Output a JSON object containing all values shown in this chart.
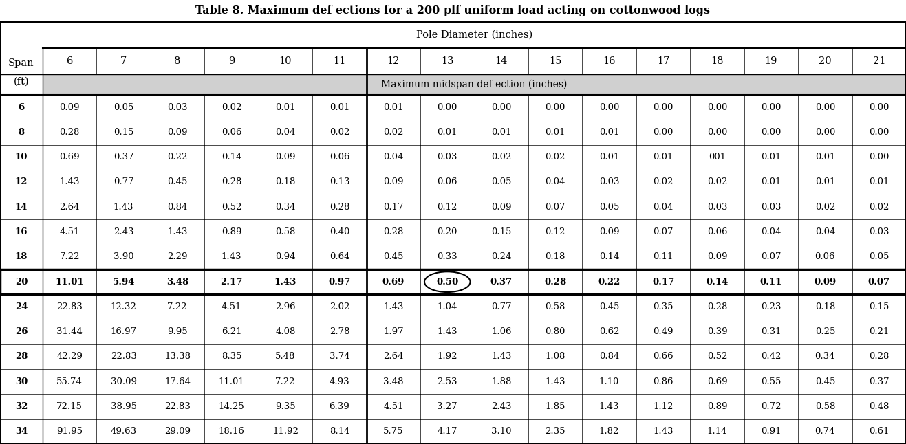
{
  "title": "Table 8. Maximum def ections for a 200 plf uniform load acting on cottonwood logs",
  "pole_diameter_label": "Pole Diameter (inches)",
  "midspan_label": "Maximum midspan def ection (inches)",
  "col_headers": [
    "6",
    "7",
    "8",
    "9",
    "10",
    "11",
    "12",
    "13",
    "14",
    "15",
    "16",
    "17",
    "18",
    "19",
    "20",
    "21"
  ],
  "row_header_label1": "Span",
  "row_header_label2": "(ft)",
  "spans": [
    "6",
    "8",
    "10",
    "12",
    "14",
    "16",
    "18",
    "20",
    "24",
    "26",
    "28",
    "30",
    "32",
    "34"
  ],
  "data": [
    [
      "0.09",
      "0.05",
      "0.03",
      "0.02",
      "0.01",
      "0.01",
      "0.01",
      "0.00",
      "0.00",
      "0.00",
      "0.00",
      "0.00",
      "0.00",
      "0.00",
      "0.00",
      "0.00"
    ],
    [
      "0.28",
      "0.15",
      "0.09",
      "0.06",
      "0.04",
      "0.02",
      "0.02",
      "0.01",
      "0.01",
      "0.01",
      "0.01",
      "0.00",
      "0.00",
      "0.00",
      "0.00",
      "0.00"
    ],
    [
      "0.69",
      "0.37",
      "0.22",
      "0.14",
      "0.09",
      "0.06",
      "0.04",
      "0.03",
      "0.02",
      "0.02",
      "0.01",
      "0.01",
      "001",
      "0.01",
      "0.01",
      "0.00"
    ],
    [
      "1.43",
      "0.77",
      "0.45",
      "0.28",
      "0.18",
      "0.13",
      "0.09",
      "0.06",
      "0.05",
      "0.04",
      "0.03",
      "0.02",
      "0.02",
      "0.01",
      "0.01",
      "0.01"
    ],
    [
      "2.64",
      "1.43",
      "0.84",
      "0.52",
      "0.34",
      "0.28",
      "0.17",
      "0.12",
      "0.09",
      "0.07",
      "0.05",
      "0.04",
      "0.03",
      "0.03",
      "0.02",
      "0.02"
    ],
    [
      "4.51",
      "2.43",
      "1.43",
      "0.89",
      "0.58",
      "0.40",
      "0.28",
      "0.20",
      "0.15",
      "0.12",
      "0.09",
      "0.07",
      "0.06",
      "0.04",
      "0.04",
      "0.03"
    ],
    [
      "7.22",
      "3.90",
      "2.29",
      "1.43",
      "0.94",
      "0.64",
      "0.45",
      "0.33",
      "0.24",
      "0.18",
      "0.14",
      "0.11",
      "0.09",
      "0.07",
      "0.06",
      "0.05"
    ],
    [
      "11.01",
      "5.94",
      "3.48",
      "2.17",
      "1.43",
      "0.97",
      "0.69",
      "0.50",
      "0.37",
      "0.28",
      "0.22",
      "0.17",
      "0.14",
      "0.11",
      "0.09",
      "0.07"
    ],
    [
      "22.83",
      "12.32",
      "7.22",
      "4.51",
      "2.96",
      "2.02",
      "1.43",
      "1.04",
      "0.77",
      "0.58",
      "0.45",
      "0.35",
      "0.28",
      "0.23",
      "0.18",
      "0.15"
    ],
    [
      "31.44",
      "16.97",
      "9.95",
      "6.21",
      "4.08",
      "2.78",
      "1.97",
      "1.43",
      "1.06",
      "0.80",
      "0.62",
      "0.49",
      "0.39",
      "0.31",
      "0.25",
      "0.21"
    ],
    [
      "42.29",
      "22.83",
      "13.38",
      "8.35",
      "5.48",
      "3.74",
      "2.64",
      "1.92",
      "1.43",
      "1.08",
      "0.84",
      "0.66",
      "0.52",
      "0.42",
      "0.34",
      "0.28"
    ],
    [
      "55.74",
      "30.09",
      "17.64",
      "11.01",
      "7.22",
      "4.93",
      "3.48",
      "2.53",
      "1.88",
      "1.43",
      "1.10",
      "0.86",
      "0.69",
      "0.55",
      "0.45",
      "0.37"
    ],
    [
      "72.15",
      "38.95",
      "22.83",
      "14.25",
      "9.35",
      "6.39",
      "4.51",
      "3.27",
      "2.43",
      "1.85",
      "1.43",
      "1.12",
      "0.89",
      "0.72",
      "0.58",
      "0.48"
    ],
    [
      "91.95",
      "49.63",
      "29.09",
      "18.16",
      "11.92",
      "8.14",
      "5.75",
      "4.17",
      "3.10",
      "2.35",
      "1.82",
      "1.43",
      "1.14",
      "0.91",
      "0.74",
      "0.61"
    ]
  ],
  "highlight_row": 7,
  "highlight_col": 7,
  "divider_after_col": 6,
  "bg_color_midspan": "#d0d0d0",
  "bg_color_white": "#ffffff",
  "title_fontsize": 11.5,
  "cell_fontsize": 9.5,
  "header_fontsize": 10.5
}
